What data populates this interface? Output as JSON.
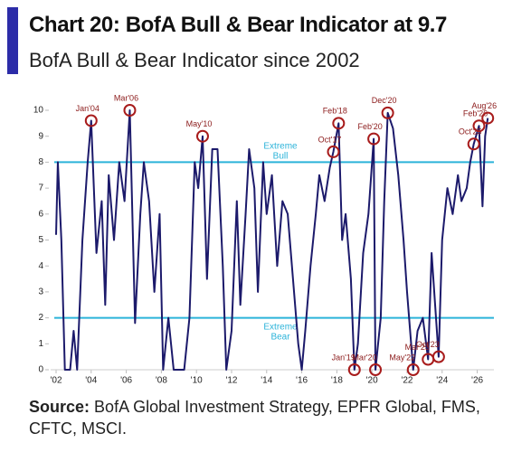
{
  "chart_data": {
    "type": "line",
    "title": "Chart 20: BofA Bull & Bear Indicator at 9.7",
    "subtitle": "BofA Bull & Bear Indicator since 2002",
    "x": [
      2002.0,
      2002.1,
      2002.3,
      2002.5,
      2002.8,
      2003.0,
      2003.2,
      2003.5,
      2003.8,
      2004.0,
      2004.3,
      2004.6,
      2004.8,
      2005.0,
      2005.3,
      2005.6,
      2005.9,
      2006.2,
      2006.5,
      2006.8,
      2007.0,
      2007.3,
      2007.6,
      2007.9,
      2008.1,
      2008.4,
      2008.7,
      2009.0,
      2009.3,
      2009.6,
      2009.9,
      2010.1,
      2010.35,
      2010.6,
      2010.9,
      2011.2,
      2011.5,
      2011.7,
      2012.0,
      2012.3,
      2012.5,
      2012.8,
      2013.0,
      2013.3,
      2013.5,
      2013.8,
      2014.0,
      2014.3,
      2014.6,
      2014.9,
      2015.2,
      2015.5,
      2015.8,
      2016.0,
      2016.2,
      2016.5,
      2016.8,
      2017.0,
      2017.3,
      2017.6,
      2017.8,
      2018.1,
      2018.3,
      2018.5,
      2018.8,
      2019.0,
      2019.2,
      2019.5,
      2019.8,
      2020.1,
      2020.2,
      2020.5,
      2020.7,
      2020.9,
      2021.2,
      2021.5,
      2021.8,
      2022.0,
      2022.35,
      2022.6,
      2022.9,
      2023.2,
      2023.4,
      2023.6,
      2023.8,
      2024.0,
      2024.3,
      2024.6,
      2024.9,
      2025.1,
      2025.4,
      2025.6,
      2025.8,
      2026.1,
      2026.3,
      2026.45,
      2026.6
    ],
    "series": [
      {
        "name": "BofA Bull & Bear Indicator",
        "color": "#1c1a6b",
        "values": [
          5.2,
          8.0,
          5,
          0,
          0,
          1.5,
          0,
          5,
          8,
          9.6,
          4.5,
          6.5,
          2.5,
          7.5,
          5,
          8,
          6.5,
          10,
          1.8,
          6,
          8,
          6.5,
          3,
          6,
          0,
          2,
          0,
          0,
          0,
          2,
          8,
          7,
          9.0,
          3.5,
          8.5,
          8.5,
          4,
          0,
          1.5,
          6.5,
          2.5,
          6,
          8.5,
          7,
          3,
          8,
          6,
          7.5,
          4,
          6.5,
          6,
          3.5,
          1,
          0,
          1.5,
          4,
          6,
          7.5,
          6.5,
          7.8,
          8.4,
          9.5,
          5,
          6,
          3.5,
          0,
          1,
          4.5,
          6,
          8.9,
          0,
          2,
          6.5,
          9.9,
          9.3,
          7.5,
          5,
          3,
          0,
          1.5,
          2,
          0.4,
          4.5,
          2.5,
          0.5,
          5,
          7,
          6,
          7.5,
          6.5,
          7,
          8,
          8.7,
          9.4,
          6.3,
          9,
          9.7
        ]
      }
    ],
    "xlim": [
      2002,
      2026.95
    ],
    "ylim": [
      0,
      10
    ],
    "xticks": [
      {
        "value": 2002,
        "label": "'02"
      },
      {
        "value": 2004,
        "label": "'04"
      },
      {
        "value": 2006,
        "label": "'06"
      },
      {
        "value": 2008,
        "label": "'08"
      },
      {
        "value": 2010,
        "label": "'10"
      },
      {
        "value": 2012,
        "label": "'12"
      },
      {
        "value": 2014,
        "label": "'14"
      },
      {
        "value": 2016,
        "label": "'16"
      },
      {
        "value": 2018,
        "label": "'18"
      },
      {
        "value": 2020,
        "label": "'20"
      },
      {
        "value": 2022,
        "label": "'22"
      },
      {
        "value": 2024,
        "label": "'24"
      },
      {
        "value": 2026,
        "label": "'26"
      }
    ],
    "yticks": [
      0,
      1,
      2,
      3,
      4,
      5,
      6,
      7,
      8,
      9,
      10
    ],
    "thresholds": [
      {
        "value": 8,
        "label": "Extreme Bull",
        "color": "#2bb3d9"
      },
      {
        "value": 2,
        "label": "Extreme Bear",
        "color": "#2bb3d9"
      }
    ],
    "annotations": [
      {
        "label": "Jan'04",
        "x": 2004.0,
        "y": 9.6
      },
      {
        "label": "Mar'06",
        "x": 2006.2,
        "y": 10
      },
      {
        "label": "May'10",
        "x": 2010.35,
        "y": 9.0
      },
      {
        "label": "Oct'17",
        "x": 2017.8,
        "y": 8.4
      },
      {
        "label": "Feb'18",
        "x": 2018.1,
        "y": 9.5
      },
      {
        "label": "Feb'20",
        "x": 2020.1,
        "y": 8.9
      },
      {
        "label": "Dec'20",
        "x": 2020.9,
        "y": 9.9
      },
      {
        "label": "Jan'19",
        "x": 2019.0,
        "y": 0
      },
      {
        "label": "Mar'20",
        "x": 2020.2,
        "y": 0
      },
      {
        "label": "May'22",
        "x": 2022.35,
        "y": 0
      },
      {
        "label": "Mar'23",
        "x": 2023.2,
        "y": 0.4
      },
      {
        "label": "Oct'23",
        "x": 2023.8,
        "y": 0.5
      },
      {
        "label": "Oct'25",
        "x": 2025.8,
        "y": 8.7
      },
      {
        "label": "Feb'26",
        "x": 2026.1,
        "y": 9.4
      },
      {
        "label": "Aug'26",
        "x": 2026.6,
        "y": 9.7
      }
    ]
  },
  "source": {
    "label": "Source:",
    "text": "BofA Global Investment Strategy, EPFR Global, FMS, CFTC, MSCI."
  }
}
